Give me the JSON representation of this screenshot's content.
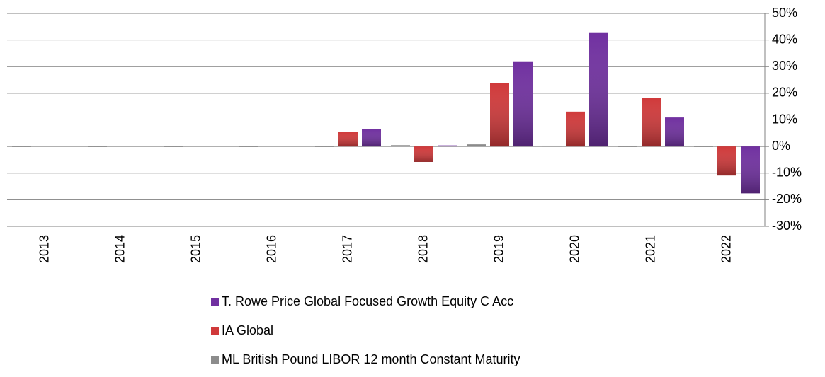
{
  "chart_data": {
    "type": "bar",
    "categories": [
      "2013",
      "2014",
      "2015",
      "2016",
      "2017",
      "2018",
      "2019",
      "2020",
      "2021",
      "2022"
    ],
    "series": [
      {
        "name": "T. Rowe Price Global Focused Growth Equity C Acc",
        "color": "#7030a0",
        "values": [
          null,
          null,
          null,
          null,
          6.6,
          0.4,
          32,
          42.9,
          10.9,
          -17.6
        ]
      },
      {
        "name": "IA Global",
        "color": "#d0393a",
        "values": [
          null,
          null,
          null,
          null,
          5.5,
          -5.8,
          23.7,
          13.1,
          18.3,
          -10.9
        ]
      },
      {
        "name": "ML British Pound LIBOR 12 month Constant Maturity",
        "color": "#8c8c8c",
        "values": [
          0.1,
          0.1,
          0.1,
          0.1,
          0.1,
          0.5,
          0.8,
          0.3,
          0.1,
          0.1
        ]
      }
    ],
    "ylim": [
      -30,
      50
    ],
    "yticks": [
      {
        "value": -30,
        "label": "-30%"
      },
      {
        "value": -20,
        "label": "-20%"
      },
      {
        "value": -10,
        "label": "-10%"
      },
      {
        "value": 0,
        "label": "0%"
      },
      {
        "value": 10,
        "label": "10%"
      },
      {
        "value": 20,
        "label": "20%"
      },
      {
        "value": 30,
        "label": "30%"
      },
      {
        "value": 40,
        "label": "40%"
      },
      {
        "value": 50,
        "label": "50%"
      }
    ],
    "grid": true
  }
}
